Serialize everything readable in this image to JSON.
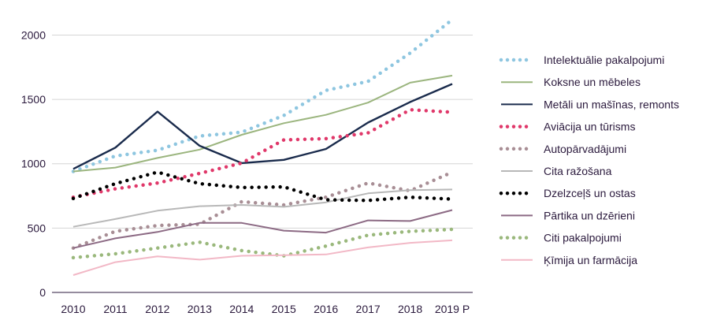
{
  "chart_data": {
    "type": "line",
    "title": "",
    "xlabel": "",
    "ylabel": "",
    "x": [
      "2010",
      "2011",
      "2012",
      "2013",
      "2014",
      "2015",
      "2016",
      "2017",
      "2018",
      "2019 P"
    ],
    "ylim": [
      0,
      2150
    ],
    "yticks": [
      0,
      500,
      1000,
      1500,
      2000
    ],
    "grid": "horizontal",
    "legend_position": "right",
    "series": [
      {
        "name": "Intelektuālie pakalpojumi",
        "style": "dotted",
        "color": "#8ec6e0",
        "values": [
          940,
          1060,
          1105,
          1215,
          1245,
          1375,
          1570,
          1640,
          1860,
          2120
        ]
      },
      {
        "name": "Koksne un mēbeles",
        "style": "solid",
        "color": "#9bb57e",
        "values": [
          940,
          970,
          1045,
          1110,
          1225,
          1315,
          1380,
          1475,
          1630,
          1685
        ]
      },
      {
        "name": "Metāli un mašīnas, remonts",
        "style": "solid",
        "color": "#1a2b4c",
        "values": [
          960,
          1125,
          1405,
          1140,
          1005,
          1030,
          1115,
          1320,
          1480,
          1620
        ]
      },
      {
        "name": "Aviācija un tūrisms",
        "style": "dotted",
        "color": "#e0386a",
        "values": [
          740,
          805,
          850,
          925,
          1005,
          1185,
          1195,
          1240,
          1420,
          1400
        ]
      },
      {
        "name": "Autopārvadājumi",
        "style": "dotted",
        "color": "#a88e95",
        "values": [
          345,
          475,
          520,
          530,
          705,
          680,
          740,
          850,
          790,
          935
        ]
      },
      {
        "name": "Cita ražošana",
        "style": "solid",
        "color": "#b8b8b8",
        "values": [
          510,
          570,
          635,
          670,
          680,
          665,
          700,
          770,
          795,
          800
        ]
      },
      {
        "name": "Dzelzceļš un ostas",
        "style": "dotted",
        "color": "#000000",
        "values": [
          730,
          845,
          935,
          845,
          815,
          820,
          720,
          715,
          740,
          725
        ]
      },
      {
        "name": "Pārtika un dzērieni",
        "style": "solid",
        "color": "#8c6a84",
        "values": [
          345,
          420,
          470,
          540,
          540,
          480,
          465,
          560,
          555,
          640
        ]
      },
      {
        "name": "Citi pakalpojumi",
        "style": "dotted",
        "color": "#9ab87c",
        "values": [
          270,
          300,
          345,
          390,
          325,
          285,
          360,
          445,
          475,
          490
        ]
      },
      {
        "name": "Ķīmija un farmācija",
        "style": "solid",
        "color": "#f2b8c6",
        "values": [
          135,
          235,
          280,
          255,
          285,
          290,
          295,
          350,
          385,
          405
        ]
      }
    ]
  }
}
